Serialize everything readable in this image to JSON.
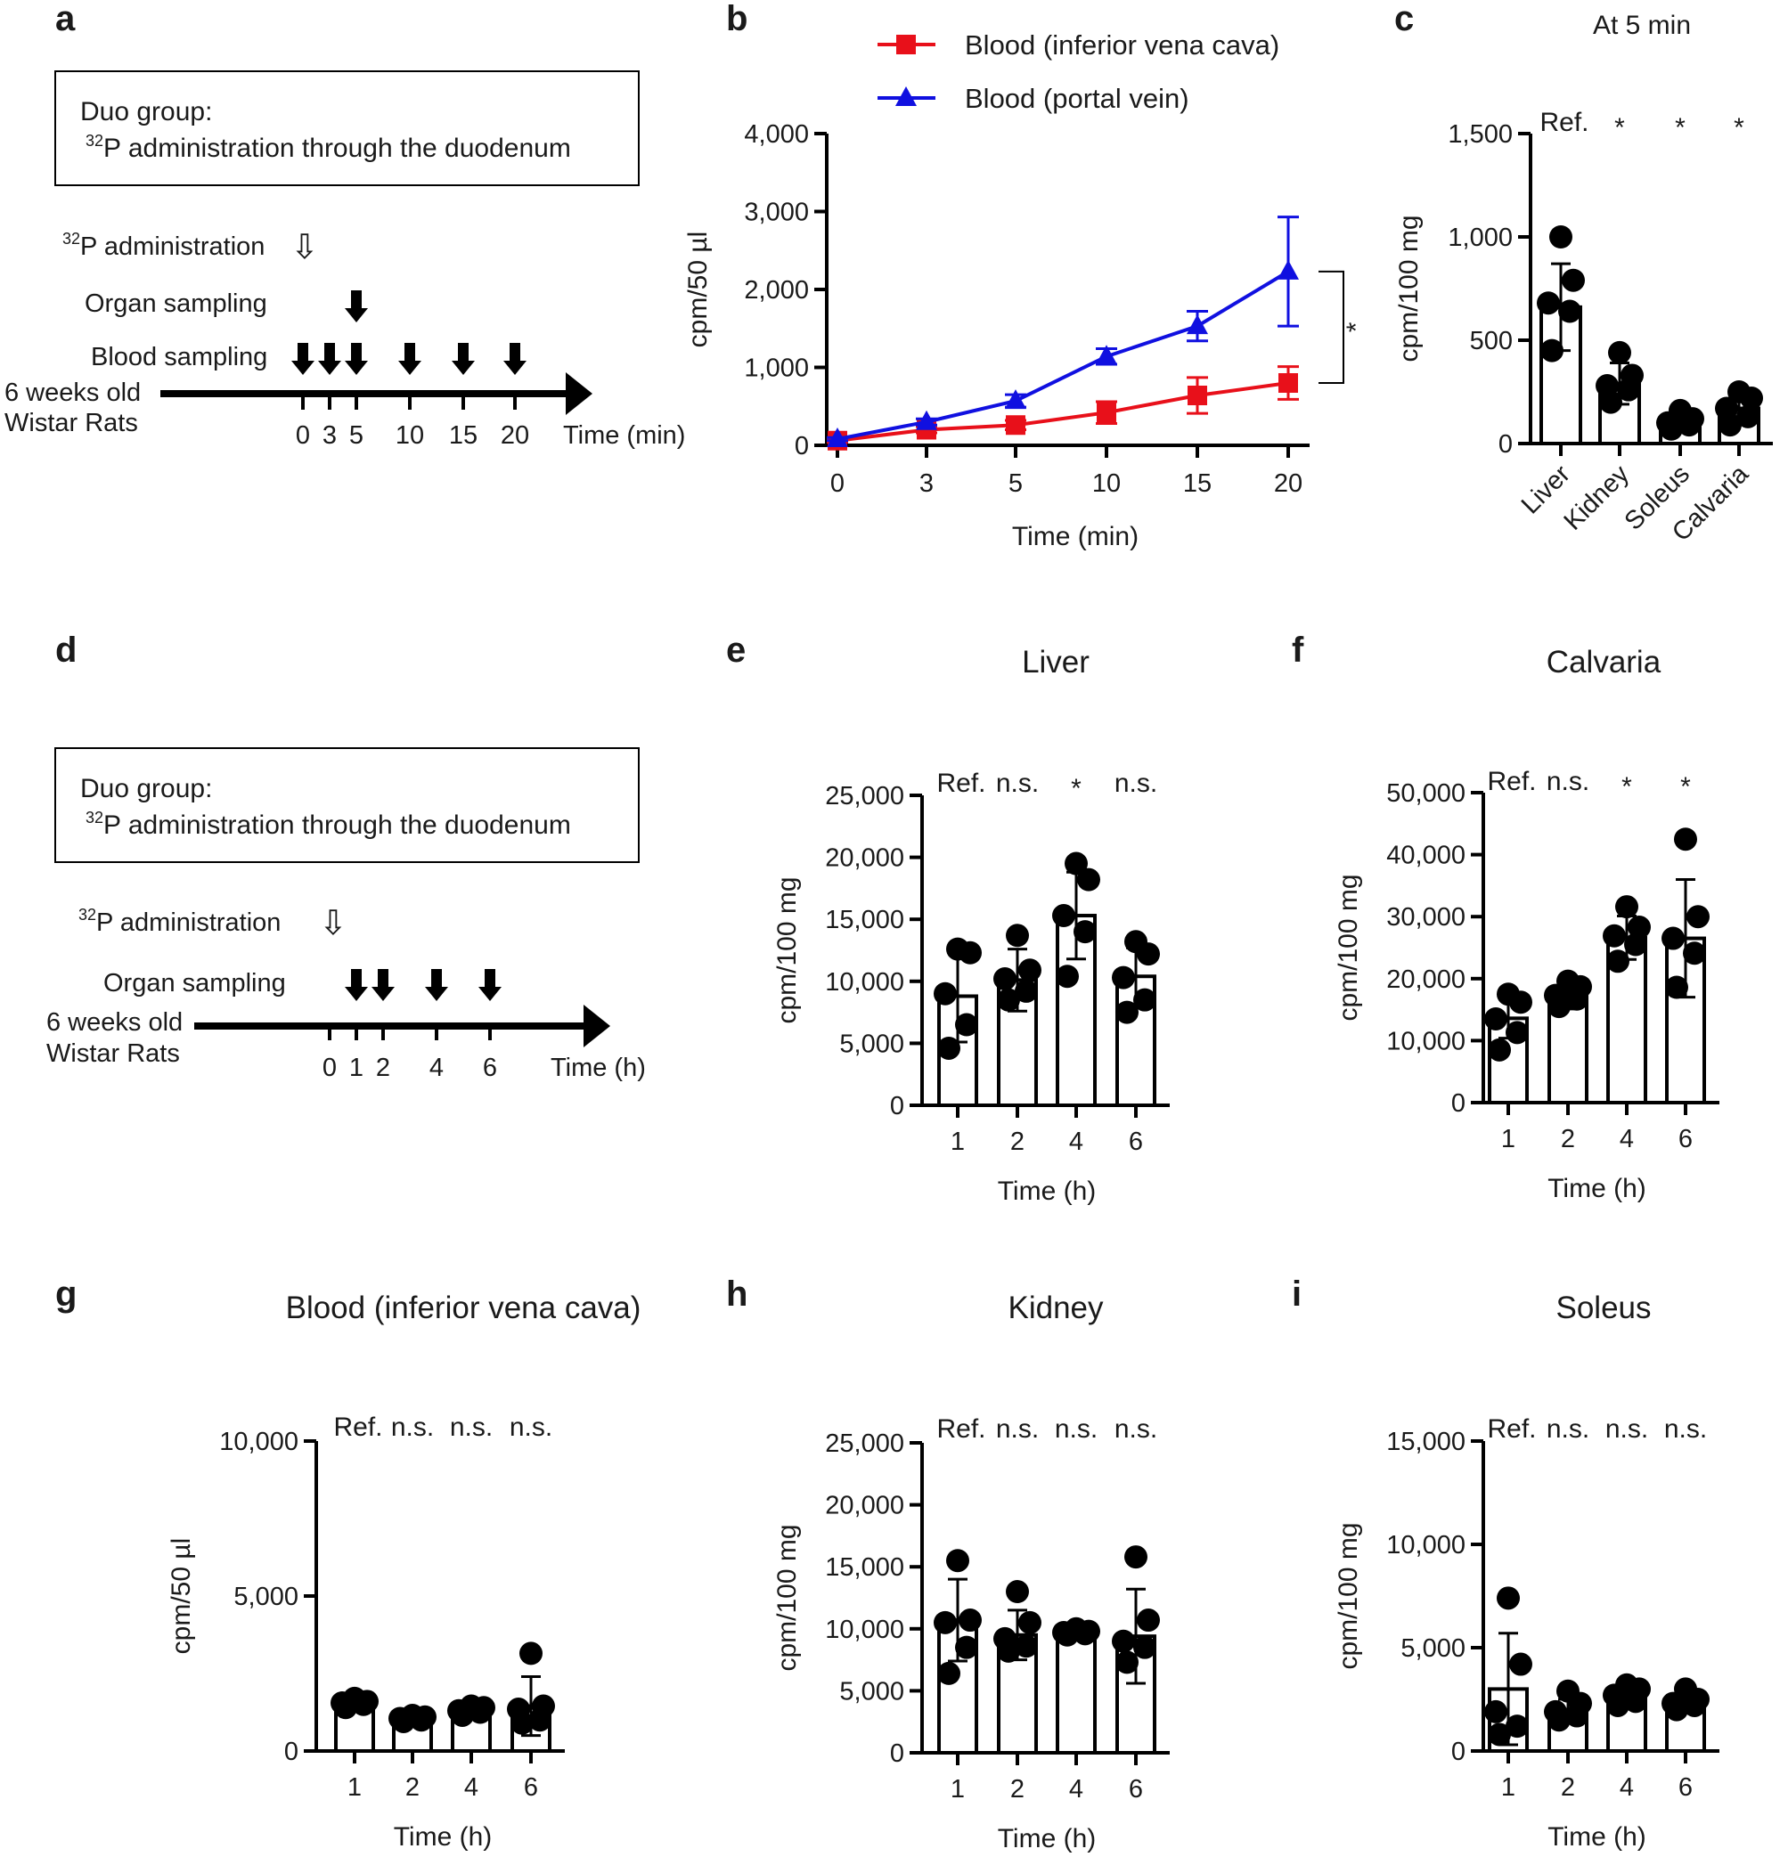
{
  "panel_labels": [
    "a",
    "b",
    "c",
    "d",
    "e",
    "f",
    "g",
    "h",
    "i"
  ],
  "schedule_a": {
    "box_line1": "Duo group:",
    "box_sup": "32",
    "box_line2": "P administration through the duodenum",
    "admin_sup": "32",
    "admin_label": "P administration",
    "admin_arrow": "⇩",
    "organ_label": "Organ sampling",
    "blood_label": "Blood sampling",
    "rats_line1": "6 weeks old",
    "rats_line2": "Wistar Rats",
    "ticks": [
      "0",
      "3",
      "5",
      "10",
      "15",
      "20"
    ],
    "axis_label": "Time (min)",
    "icons": [
      "open-down-arrow-icon",
      "filled-down-arrow-icon",
      "timeline-arrow-icon"
    ]
  },
  "schedule_d": {
    "box_line1": "Duo group:",
    "box_sup": "32",
    "box_line2": "P administration through the duodenum",
    "admin_sup": "32",
    "admin_label": "P administration",
    "admin_arrow": "⇩",
    "organ_label": "Organ sampling",
    "rats_line1": "6 weeks old",
    "rats_line2": "Wistar Rats",
    "ticks": [
      "0",
      "1",
      "2",
      "4",
      "6"
    ],
    "axis_label": "Time (h)"
  },
  "chart_data": [
    {
      "id": "b",
      "type": "line",
      "title": "",
      "x": [
        0,
        3,
        5,
        10,
        15,
        20
      ],
      "x_tick_labels": [
        "0",
        "3",
        "5",
        "10",
        "15",
        "20"
      ],
      "xlabel": "Time (min)",
      "ylabel": "cpm/50 µl",
      "ylim": [
        0,
        4000
      ],
      "y_ticks": [
        0,
        1000,
        2000,
        3000,
        4000
      ],
      "y_tick_labels": [
        "0",
        "1,000",
        "2,000",
        "3,000",
        "4,000"
      ],
      "series": [
        {
          "name": "Blood (inferior vena cava)",
          "color": "#e8101a",
          "marker": "square",
          "values": [
            60,
            200,
            260,
            420,
            640,
            800
          ],
          "errors": [
            20,
            40,
            60,
            140,
            230,
            210
          ]
        },
        {
          "name": "Blood (portal vein)",
          "color": "#1010e0",
          "marker": "triangle",
          "values": [
            80,
            300,
            570,
            1140,
            1530,
            2230
          ],
          "errors": [
            20,
            40,
            80,
            100,
            190,
            700
          ]
        }
      ],
      "significance": "*",
      "legend_position": "top"
    },
    {
      "id": "c",
      "type": "bar",
      "title": "At 5 min",
      "categories": [
        "Liver",
        "Kidney",
        "Soleus",
        "Calvaria"
      ],
      "values": [
        660,
        290,
        110,
        170
      ],
      "errors": [
        210,
        100,
        40,
        60
      ],
      "points": [
        [
          1000,
          790,
          680,
          640,
          450
        ],
        [
          440,
          330,
          280,
          260,
          200
        ],
        [
          160,
          120,
          100,
          90,
          70
        ],
        [
          250,
          220,
          170,
          130,
          90
        ]
      ],
      "annotations": [
        "Ref.",
        "*",
        "*",
        "*"
      ],
      "ylabel": "cpm/100 mg",
      "ylim": [
        0,
        1500
      ],
      "y_ticks": [
        0,
        500,
        1000,
        1500
      ],
      "y_tick_labels": [
        "0",
        "500",
        "1,000",
        "1,500"
      ],
      "rotate_categories": true
    },
    {
      "id": "e",
      "type": "bar",
      "title": "Liver",
      "categories": [
        "1",
        "2",
        "4",
        "6"
      ],
      "values": [
        8800,
        10100,
        15300,
        10400
      ],
      "errors": [
        3700,
        2500,
        3500,
        2300
      ],
      "points": [
        [
          12600,
          12300,
          9000,
          6500,
          4600
        ],
        [
          13700,
          10900,
          10200,
          9200,
          8500
        ],
        [
          19500,
          18200,
          15300,
          14000,
          10400
        ],
        [
          13200,
          12200,
          10300,
          8500,
          7500
        ]
      ],
      "annotations": [
        "Ref.",
        "n.s.",
        "*",
        "n.s."
      ],
      "xlabel": "Time (h)",
      "ylabel": "cpm/100 mg",
      "ylim": [
        0,
        25000
      ],
      "y_ticks": [
        0,
        5000,
        10000,
        15000,
        20000,
        25000
      ],
      "y_tick_labels": [
        "0",
        "5,000",
        "10,000",
        "15,000",
        "20,000",
        "25,000"
      ]
    },
    {
      "id": "f",
      "type": "bar",
      "title": "Calvaria",
      "categories": [
        "1",
        "2",
        "4",
        "6"
      ],
      "values": [
        13600,
        17500,
        26600,
        26500
      ],
      "errors": [
        3200,
        2400,
        3500,
        9500
      ],
      "points": [
        [
          17500,
          16200,
          13500,
          11300,
          8500
        ],
        [
          19600,
          18700,
          17300,
          16700,
          15500
        ],
        [
          31600,
          28300,
          26900,
          25500,
          22800
        ],
        [
          42500,
          30000,
          26500,
          24100,
          18600
        ]
      ],
      "annotations": [
        "Ref.",
        "n.s.",
        "*",
        "*"
      ],
      "xlabel": "Time (h)",
      "ylabel": "cpm/100 mg",
      "ylim": [
        0,
        50000
      ],
      "y_ticks": [
        0,
        10000,
        20000,
        30000,
        40000,
        50000
      ],
      "y_tick_labels": [
        "0",
        "10,000",
        "20,000",
        "30,000",
        "40,000",
        "50,000"
      ]
    },
    {
      "id": "g",
      "type": "bar",
      "title": "Blood (inferior vena cava)",
      "categories": [
        "1",
        "2",
        "4",
        "6"
      ],
      "values": [
        1550,
        1050,
        1300,
        1450
      ],
      "errors": [
        150,
        120,
        170,
        950
      ],
      "points": [
        [
          1700,
          1600,
          1550,
          1500,
          1400
        ],
        [
          1150,
          1100,
          1050,
          1000,
          950
        ],
        [
          1450,
          1400,
          1300,
          1250,
          1150
        ],
        [
          3150,
          1450,
          1350,
          1000,
          900
        ]
      ],
      "annotations": [
        "Ref.",
        "n.s.",
        "n.s.",
        "n.s."
      ],
      "xlabel": "Time (h)",
      "ylabel": "cpm/50 µl",
      "ylim": [
        0,
        10000
      ],
      "y_ticks": [
        0,
        5000,
        10000
      ],
      "y_tick_labels": [
        "0",
        "5,000",
        "10,000"
      ]
    },
    {
      "id": "h",
      "type": "bar",
      "title": "Kidney",
      "categories": [
        "1",
        "2",
        "4",
        "6"
      ],
      "values": [
        10700,
        9500,
        9800,
        9400
      ],
      "errors": [
        3300,
        2000,
        400,
        3800
      ],
      "points": [
        [
          15500,
          10700,
          10500,
          8500,
          6400
        ],
        [
          13000,
          10500,
          9200,
          8600,
          8200
        ],
        [
          10000,
          9800,
          9700,
          9600,
          9500
        ],
        [
          15800,
          10700,
          9000,
          8500,
          7300
        ]
      ],
      "annotations": [
        "Ref.",
        "n.s.",
        "n.s.",
        "n.s."
      ],
      "xlabel": "Time (h)",
      "ylabel": "cpm/100 mg",
      "ylim": [
        0,
        25000
      ],
      "y_ticks": [
        0,
        5000,
        10000,
        15000,
        20000,
        25000
      ],
      "y_tick_labels": [
        "0",
        "5,000",
        "10,000",
        "15,000",
        "20,000",
        "25,000"
      ]
    },
    {
      "id": "i",
      "type": "bar",
      "title": "Soleus",
      "categories": [
        "1",
        "2",
        "4",
        "6"
      ],
      "values": [
        3000,
        2000,
        2700,
        2300
      ],
      "errors": [
        2700,
        500,
        500,
        450
      ],
      "points": [
        [
          7400,
          4200,
          1900,
          1200,
          800
        ],
        [
          2900,
          2300,
          1900,
          1700,
          1500
        ],
        [
          3200,
          3000,
          2700,
          2400,
          2200
        ],
        [
          3000,
          2500,
          2300,
          2200,
          2000
        ]
      ],
      "annotations": [
        "Ref.",
        "n.s.",
        "n.s.",
        "n.s."
      ],
      "xlabel": "Time (h)",
      "ylabel": "cpm/100 mg",
      "ylim": [
        0,
        15000
      ],
      "y_ticks": [
        0,
        5000,
        10000,
        15000
      ],
      "y_tick_labels": [
        "0",
        "5,000",
        "10,000",
        "15,000"
      ]
    }
  ]
}
